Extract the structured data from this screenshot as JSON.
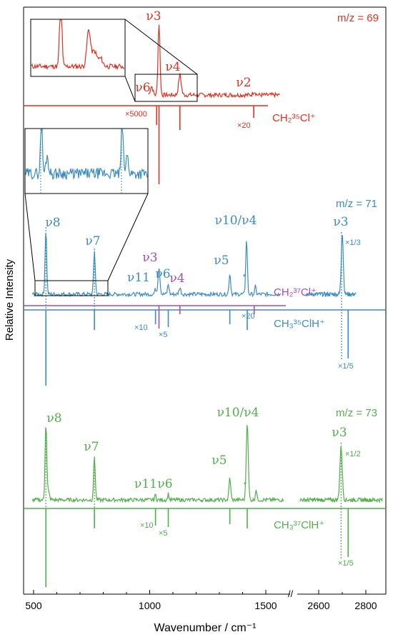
{
  "chart_data": {
    "type": "line",
    "xlabel": "Wavenumber / cm⁻¹",
    "ylabel": "Relative Intensity",
    "axis_break": "//",
    "xlim_left": [
      470,
      1590
    ],
    "xlim_right": [
      2500,
      2880
    ],
    "xticks": [
      "500",
      "1000",
      "1500",
      "2600",
      "2800"
    ],
    "colors": {
      "m69": "#e3301f",
      "m71": "#3a8cc6",
      "m73": "#4fb04a",
      "purple": "#a64cb4"
    },
    "panels": [
      {
        "id": "m69",
        "mz_label": "m/z = 69",
        "ion_label": "CH₂³⁵Cl⁺",
        "peaks": [
          {
            "label": "ν6",
            "x": 1008,
            "h": 0.12
          },
          {
            "label": "ν3",
            "x": 1040,
            "h": 1.0
          },
          {
            "label": "ν4",
            "x": 1130,
            "h": 0.28
          },
          {
            "label": "ν2",
            "x": 1450,
            "h": 0.05
          }
        ],
        "sticks": [
          {
            "x": 1040,
            "d": 1.0
          },
          {
            "x": 1030,
            "d": 0.18
          },
          {
            "x": 1130,
            "d": 0.25
          },
          {
            "x": 1448,
            "d": 0.18
          }
        ],
        "scale_labels": [
          "×5000",
          "×20"
        ]
      },
      {
        "id": "m71",
        "mz_label": "m/z = 71",
        "ion_label": "CH₂³⁷Cl⁺",
        "ion_label2": "CH₃³⁵ClH⁺",
        "peaks": [
          {
            "label": "ν8",
            "x": 553,
            "h": 1.0
          },
          {
            "label": "ν7",
            "x": 762,
            "h": 0.68
          },
          {
            "label": "ν11",
            "x": 1025,
            "h": 0.1
          },
          {
            "label": "ν3",
            "x": 1040,
            "h": 0.42
          },
          {
            "label": "ν6",
            "x": 1080,
            "h": 0.15
          },
          {
            "label": "ν4",
            "x": 1130,
            "h": 0.1
          },
          {
            "label": "ν5",
            "x": 1345,
            "h": 0.32
          },
          {
            "label": "ν10/ν4",
            "x": 1417,
            "h": 0.85
          },
          {
            "label": "*",
            "x": 1455,
            "h": 0.12
          },
          {
            "label": "ν3",
            "x": 2700,
            "h": 1.0
          }
        ],
        "sticks": [
          {
            "x": 1040,
            "d": 0.3
          },
          {
            "x": 1130,
            "d": 0.1
          },
          {
            "x": 1450,
            "d": 0.1
          }
        ],
        "sticks2": [
          {
            "x": 553,
            "d": 1.0
          },
          {
            "x": 762,
            "d": 0.28
          },
          {
            "x": 1025,
            "d": 0.22
          },
          {
            "x": 1080,
            "d": 0.22
          },
          {
            "x": 1345,
            "d": 0.22
          },
          {
            "x": 1420,
            "d": 0.3
          },
          {
            "x": 2725,
            "d": 0.65
          }
        ],
        "scale_labels": [
          "×1/3",
          "×10",
          "×5",
          "×20",
          "×1/5"
        ]
      },
      {
        "id": "m73",
        "mz_label": "m/z = 73",
        "ion_label": "CH₃³⁷ClH⁺",
        "peaks": [
          {
            "label": "ν8",
            "x": 553,
            "h": 1.0
          },
          {
            "label": "ν7",
            "x": 762,
            "h": 0.58
          },
          {
            "label": "ν11",
            "x": 1025,
            "h": 0.07
          },
          {
            "label": "ν6",
            "x": 1080,
            "h": 0.08
          },
          {
            "label": "ν5",
            "x": 1345,
            "h": 0.3
          },
          {
            "label": "ν10/ν4",
            "x": 1420,
            "h": 1.1
          },
          {
            "label": "*",
            "x": 1458,
            "h": 0.15
          },
          {
            "label": "ν3",
            "x": 2695,
            "h": 0.8
          }
        ],
        "sticks": [
          {
            "x": 553,
            "d": 1.0
          },
          {
            "x": 762,
            "d": 0.3
          },
          {
            "x": 1025,
            "d": 0.25
          },
          {
            "x": 1080,
            "d": 0.25
          },
          {
            "x": 1345,
            "d": 0.22
          },
          {
            "x": 1420,
            "d": 0.3
          },
          {
            "x": 2725,
            "d": 0.7
          }
        ],
        "scale_labels": [
          "×10",
          "×5",
          "×1/2",
          "×1/5"
        ]
      }
    ]
  }
}
